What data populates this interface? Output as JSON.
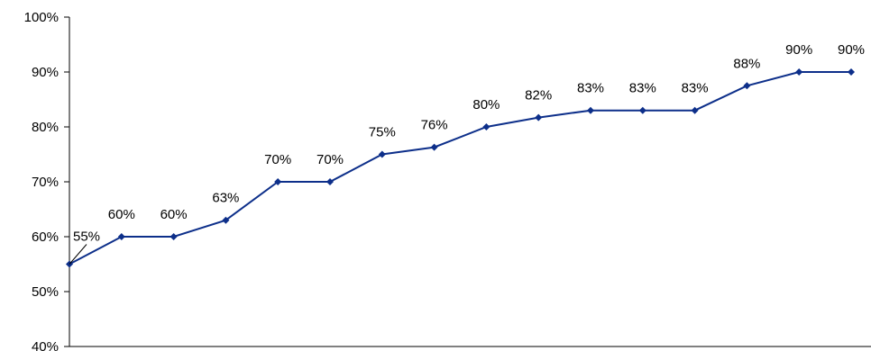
{
  "chart_data": {
    "type": "line",
    "title": "",
    "xlabel": "",
    "ylabel": "",
    "ylim": [
      0.4,
      1.0
    ],
    "y_ticks": [
      {
        "value": 1.0,
        "label": "100%"
      },
      {
        "value": 0.9,
        "label": "90%"
      },
      {
        "value": 0.8,
        "label": "80%"
      },
      {
        "value": 0.7,
        "label": "70%"
      },
      {
        "value": 0.6,
        "label": "60%"
      },
      {
        "value": 0.5,
        "label": "50%"
      },
      {
        "value": 0.4,
        "label": "40%"
      }
    ],
    "grid": false,
    "legend": "none",
    "series": [
      {
        "color": "#0d2f8a",
        "marker": "diamond",
        "values": [
          0.55,
          0.6,
          0.6,
          0.63,
          0.7,
          0.7,
          0.75,
          0.763,
          0.8,
          0.817,
          0.83,
          0.83,
          0.83,
          0.875,
          0.9,
          0.9
        ],
        "labels": [
          "55%",
          "60%",
          "60%",
          "63%",
          "70%",
          "70%",
          "75%",
          "76%",
          "80%",
          "82%",
          "83%",
          "83%",
          "83%",
          "88%",
          "90%",
          "90%"
        ]
      }
    ]
  }
}
